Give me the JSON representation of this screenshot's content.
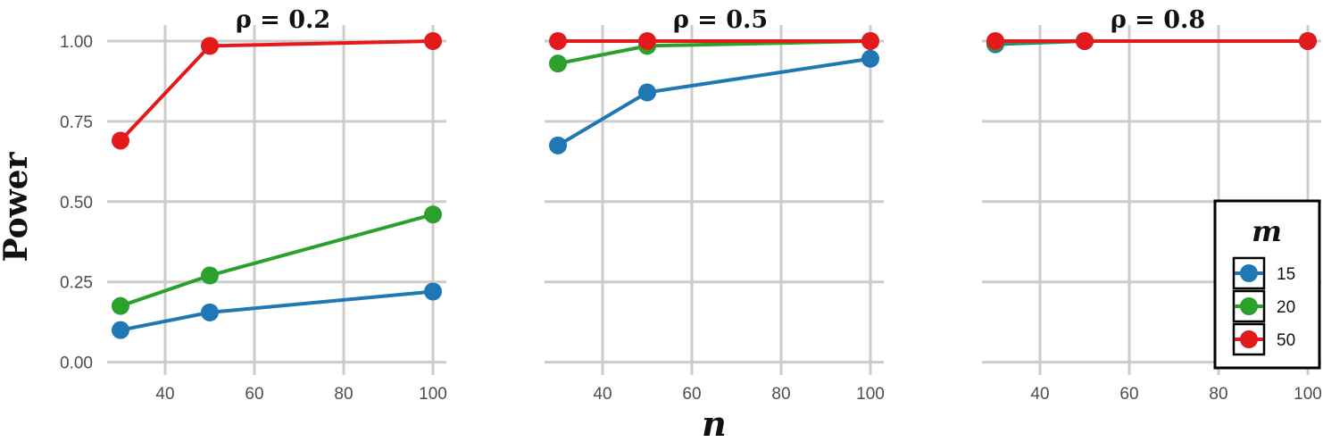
{
  "chart_data": [
    {
      "type": "line",
      "title": "ρ = 0.2",
      "xlabel": "n",
      "ylabel": "Power",
      "x": [
        30,
        50,
        100
      ],
      "xticks": [
        "40",
        "60",
        "80",
        "100"
      ],
      "yticks": [
        "0.00",
        "0.25",
        "0.50",
        "0.75",
        "1.00"
      ],
      "xlim": [
        27,
        103
      ],
      "ylim": [
        -0.04,
        1.05
      ],
      "grid": true,
      "series": [
        {
          "name": "15",
          "values": [
            0.1,
            0.155,
            0.22
          ]
        },
        {
          "name": "20",
          "values": [
            0.175,
            0.27,
            0.46
          ]
        },
        {
          "name": "50",
          "values": [
            0.69,
            0.985,
            1.0
          ]
        }
      ]
    },
    {
      "type": "line",
      "title": "ρ = 0.5",
      "xlabel": "n",
      "ylabel": "Power",
      "x": [
        30,
        50,
        100
      ],
      "xticks": [
        "40",
        "60",
        "80",
        "100"
      ],
      "yticks": [
        "0.00",
        "0.25",
        "0.50",
        "0.75",
        "1.00"
      ],
      "xlim": [
        27,
        103
      ],
      "ylim": [
        -0.04,
        1.05
      ],
      "grid": true,
      "series": [
        {
          "name": "15",
          "values": [
            0.675,
            0.84,
            0.945
          ]
        },
        {
          "name": "20",
          "values": [
            0.93,
            0.985,
            1.0
          ]
        },
        {
          "name": "50",
          "values": [
            1.0,
            1.0,
            1.0
          ]
        }
      ]
    },
    {
      "type": "line",
      "title": "ρ = 0.8",
      "xlabel": "n",
      "ylabel": "Power",
      "x": [
        30,
        50,
        100
      ],
      "xticks": [
        "40",
        "60",
        "80",
        "100"
      ],
      "yticks": [
        "0.00",
        "0.25",
        "0.50",
        "0.75",
        "1.00"
      ],
      "xlim": [
        27,
        103
      ],
      "ylim": [
        -0.04,
        1.05
      ],
      "grid": true,
      "series": [
        {
          "name": "15",
          "values": [
            0.99,
            1.0,
            1.0
          ]
        },
        {
          "name": "20",
          "values": [
            0.995,
            1.0,
            1.0
          ]
        },
        {
          "name": "50",
          "values": [
            1.0,
            1.0,
            1.0
          ]
        }
      ]
    }
  ],
  "axis_titles": {
    "x": "n",
    "y": "Power"
  },
  "legend": {
    "title": "m",
    "placement": "bottom-right",
    "entries": [
      "15",
      "20",
      "50"
    ]
  },
  "colors": {
    "15": "#1f77b4",
    "20": "#2ca02c",
    "50": "#e31a1c",
    "grid": "#cccccc",
    "tick_text": "#4d4d4d"
  }
}
